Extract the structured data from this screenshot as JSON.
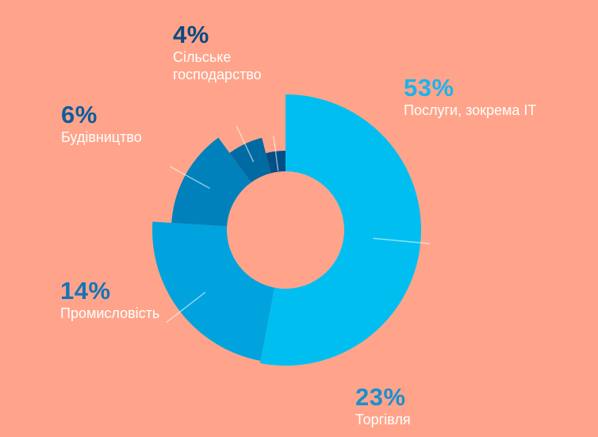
{
  "chart_data": {
    "type": "pie",
    "title": "",
    "categories": [
      "Послуги, зокрема IT",
      "Торгівля",
      "Промисловість",
      "Будівництво",
      "Сільське господарство"
    ],
    "values": [
      53,
      23,
      14,
      6,
      4
    ],
    "value_labels": [
      "53%",
      "23%",
      "14%",
      "6%",
      "4%"
    ],
    "label_lines": [
      [
        "Послуги, зокрема IT"
      ],
      [
        "Торгівля"
      ],
      [
        "Промисловість"
      ],
      [
        "Будівництво"
      ],
      [
        "Сільське",
        "господарство"
      ]
    ],
    "colors": [
      "#00BFF0",
      "#00A3DD",
      "#0081BC",
      "#006BA3",
      "#004F86"
    ],
    "label_colors": [
      "#1AB4EC",
      "#1A8FD0",
      "#1474B8",
      "#105C9C",
      "#0B4A80"
    ],
    "legend": "none",
    "grid": false
  }
}
